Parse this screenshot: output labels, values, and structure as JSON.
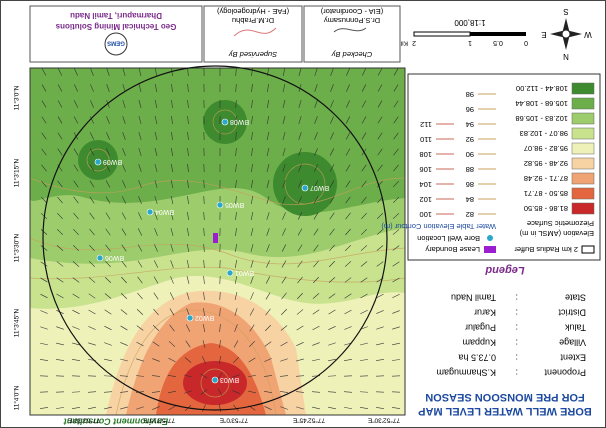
{
  "title": [
    "BORE WELL WATER LEVEL MAP",
    "FOR PRE MONSOON SEASON"
  ],
  "info": [
    [
      "Proponent",
      ":",
      "K.Shanmugam"
    ],
    [
      "Extent",
      ":",
      "0.73.5 ha"
    ],
    [
      "Village",
      ":",
      "Kuppam"
    ],
    [
      "Taluk",
      ":",
      "Pugalur"
    ],
    [
      "District",
      ":",
      "Karur"
    ],
    [
      "State",
      ":",
      "Tamil Nadu"
    ]
  ],
  "legend": {
    "title": "Legend",
    "buffer": "2 km Radius Buffer",
    "lease": "Lease Boundary",
    "well": "Bore Well Location",
    "contour_title": "Water Table Elevation Contour (m)",
    "elevation_title": [
      "Elevation (AMSL in m)",
      "Piezometric Surface"
    ],
    "classes": [
      {
        "label": "81.86 - 85.50",
        "color": "#c8282a"
      },
      {
        "label": "85.50 - 87.71",
        "color": "#e4663e"
      },
      {
        "label": "87.71 - 92.48",
        "color": "#f0a474"
      },
      {
        "label": "92.48 - 95.82",
        "color": "#f7d3a4"
      },
      {
        "label": "95.82 - 98.07",
        "color": "#eef2b8"
      },
      {
        "label": "98.07 - 102.83",
        "color": "#c8e28e"
      },
      {
        "label": "102.83 - 105.68",
        "color": "#9ccc6c"
      },
      {
        "label": "105.68 - 108.44",
        "color": "#6cae4a"
      },
      {
        "label": "108.44 - 112.00",
        "color": "#3e8a2e"
      }
    ],
    "contours_low": [
      "82",
      "84",
      "86",
      "88",
      "90",
      "92",
      "94",
      "96",
      "98"
    ],
    "contours_high": [
      "100",
      "102",
      "104",
      "106",
      "108",
      "110",
      "112"
    ]
  },
  "scale": {
    "labels": [
      "0",
      "0.5",
      "1",
      "2"
    ],
    "unit": "Kilometers",
    "ratio": "1:18,000"
  },
  "north": [
    "N",
    "S",
    "E",
    "W"
  ],
  "header": {
    "checked_title": "Checked By",
    "checked_name": "Dr.S.Ponnusamy",
    "checked_role": "(EIA - Coordinator)",
    "supervised_title": "Supervised By",
    "supervised_name": "Dr.M.Prabhu",
    "supervised_role": "(FAE - Hydrogeology)",
    "logo": "GEMS",
    "company": [
      "Geo Technical Mining Solutions",
      "Dharmapuri, Tamil Nadu"
    ],
    "consultant": "Environment Consultant"
  },
  "longitudes": [
    "77°52'30\"E",
    "77°52'45\"E",
    "77°53'0\"E",
    "77°53'15\"E",
    "77°53'30\"E"
  ],
  "latitudes": [
    "11°4'0\"N",
    "11°3'45\"N",
    "11°3'30\"N",
    "11°3'15\"N",
    "11°3'0\"N"
  ],
  "wells": [
    "BW03",
    "BW02",
    "BW01",
    "BW06",
    "BW04",
    "BW05",
    "BW07",
    "BW08",
    "BW09"
  ]
}
